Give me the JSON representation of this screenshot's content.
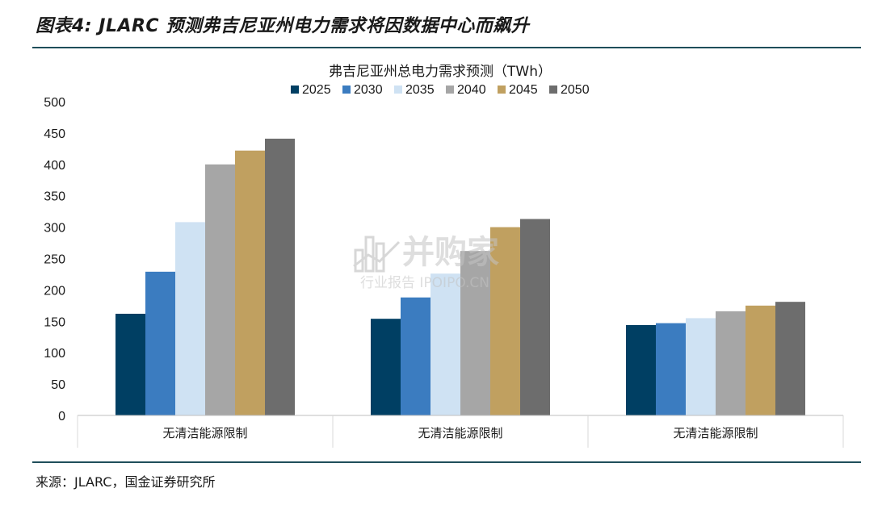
{
  "figure": {
    "title": "图表4:  JLARC 预测弗吉尼亚州电力需求将因数据中心而飙升",
    "source": "来源：JLARC，国金证券研究所"
  },
  "watermark": {
    "brand": "并购家",
    "subtitle": "行业报告 IPOIPO.CN"
  },
  "chart_data": {
    "type": "bar",
    "title": "弗吉尼亚州总电力需求预测（TWh）",
    "categories": [
      "无清洁能源限制",
      "无清洁能源限制",
      "无清洁能源限制"
    ],
    "series": [
      {
        "name": "2025",
        "color": "#003f63",
        "values": [
          162,
          154,
          144
        ]
      },
      {
        "name": "2030",
        "color": "#3b7cc0",
        "values": [
          229,
          188,
          147
        ]
      },
      {
        "name": "2035",
        "color": "#cfe2f3",
        "values": [
          308,
          226,
          155
        ]
      },
      {
        "name": "2040",
        "color": "#a6a6a6",
        "values": [
          400,
          262,
          166
        ]
      },
      {
        "name": "2045",
        "color": "#c0a060",
        "values": [
          422,
          300,
          175
        ]
      },
      {
        "name": "2050",
        "color": "#6d6d6d",
        "values": [
          441,
          313,
          181
        ]
      }
    ],
    "yticks": [
      0,
      50,
      100,
      150,
      200,
      250,
      300,
      350,
      400,
      450,
      500
    ],
    "ylim": [
      0,
      500
    ],
    "legend_position": "top",
    "grid": false
  }
}
